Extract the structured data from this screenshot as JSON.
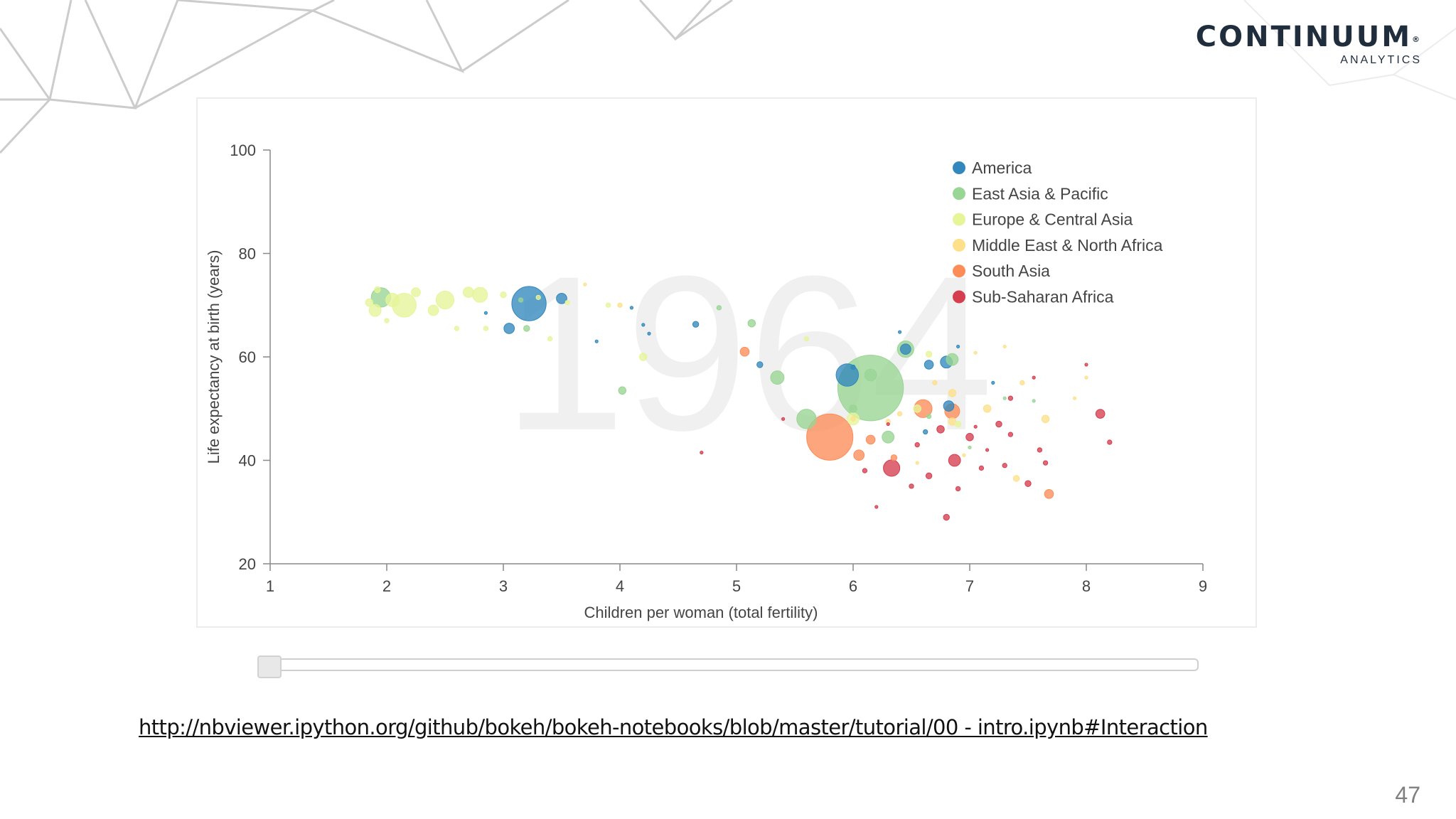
{
  "branding": {
    "name": "CONTINUUM",
    "reg_mark": "®",
    "subtitle": "ANALYTICS"
  },
  "footer": {
    "url": "http://nbviewer.ipython.org/github/bokeh/bokeh-notebooks/blob/master/tutorial/00 - intro.ipynb#Interaction",
    "page_number": "47"
  },
  "slider": {
    "value": 0
  },
  "chart_data": {
    "type": "scatter",
    "year_label": "1964",
    "xlabel": "Children per woman (total fertility)",
    "ylabel": "Life expectancy at birth (years)",
    "xlim": [
      1,
      9
    ],
    "ylim": [
      20,
      100
    ],
    "x_ticks": [
      1,
      2,
      3,
      4,
      5,
      6,
      7,
      8,
      9
    ],
    "y_ticks": [
      20,
      40,
      60,
      80,
      100
    ],
    "legend_position": "top-right",
    "series": [
      {
        "name": "America",
        "color": "#3288bd",
        "points": [
          [
            3.22,
            70.3,
            23
          ],
          [
            3.5,
            71.3,
            7
          ],
          [
            3.05,
            65.5,
            7
          ],
          [
            4.65,
            66.3,
            4
          ],
          [
            5.2,
            58.5,
            4
          ],
          [
            5.95,
            56.5,
            15
          ],
          [
            6.65,
            58.5,
            6
          ],
          [
            6.8,
            59.0,
            8
          ],
          [
            6.45,
            61.5,
            7
          ],
          [
            6.82,
            50.5,
            7
          ],
          [
            6.0,
            58.0,
            3
          ],
          [
            3.8,
            63.0,
            2
          ],
          [
            4.1,
            69.5,
            2
          ],
          [
            4.25,
            64.5,
            2
          ],
          [
            7.2,
            55.0,
            2
          ],
          [
            6.62,
            45.5,
            3
          ],
          [
            6.4,
            64.8,
            2
          ],
          [
            6.9,
            62.0,
            2
          ],
          [
            2.85,
            68.5,
            2
          ],
          [
            4.2,
            66.2,
            2
          ]
        ]
      },
      {
        "name": "East Asia & Pacific",
        "color": "#99d594",
        "points": [
          [
            6.15,
            54.0,
            44
          ],
          [
            5.6,
            48.0,
            13
          ],
          [
            6.45,
            61.5,
            11
          ],
          [
            5.35,
            56.0,
            9
          ],
          [
            6.15,
            56.5,
            8
          ],
          [
            6.85,
            59.5,
            8
          ],
          [
            1.95,
            71.5,
            13
          ],
          [
            5.13,
            66.5,
            5
          ],
          [
            4.02,
            53.5,
            5
          ],
          [
            6.3,
            44.5,
            8
          ],
          [
            4.85,
            69.5,
            3
          ],
          [
            3.15,
            71.0,
            3
          ],
          [
            3.2,
            65.5,
            4
          ],
          [
            7.3,
            52.0,
            2
          ],
          [
            6.65,
            48.5,
            3
          ],
          [
            6.0,
            50.0,
            5
          ],
          [
            7.0,
            42.5,
            2
          ],
          [
            7.55,
            51.5,
            2
          ]
        ]
      },
      {
        "name": "Europe & Central Asia",
        "color": "#e6f598",
        "points": [
          [
            2.15,
            70.0,
            16
          ],
          [
            2.5,
            71.0,
            12
          ],
          [
            2.8,
            72.0,
            10
          ],
          [
            1.9,
            69.0,
            8
          ],
          [
            2.05,
            71.0,
            9
          ],
          [
            2.4,
            69.0,
            7
          ],
          [
            2.7,
            72.5,
            7
          ],
          [
            2.25,
            72.5,
            6
          ],
          [
            1.85,
            70.5,
            5
          ],
          [
            3.0,
            72.0,
            4
          ],
          [
            2.6,
            65.5,
            3
          ],
          [
            2.85,
            65.5,
            3
          ],
          [
            3.4,
            63.5,
            3
          ],
          [
            3.55,
            70.5,
            3
          ],
          [
            3.9,
            70.0,
            3
          ],
          [
            4.2,
            60.0,
            5
          ],
          [
            5.6,
            63.5,
            3
          ],
          [
            6.0,
            48.0,
            8
          ],
          [
            6.65,
            60.5,
            4
          ],
          [
            6.55,
            50.0,
            5
          ],
          [
            2.0,
            67.0,
            3
          ],
          [
            3.3,
            71.5,
            3
          ],
          [
            1.92,
            73.0,
            4
          ],
          [
            6.9,
            47.0,
            4
          ]
        ]
      },
      {
        "name": "Middle East & North Africa",
        "color": "#fee08b",
        "points": [
          [
            7.65,
            48.0,
            5
          ],
          [
            7.15,
            50.0,
            5
          ],
          [
            6.85,
            47.5,
            5
          ],
          [
            6.4,
            49.0,
            3
          ],
          [
            7.45,
            55.0,
            3
          ],
          [
            7.05,
            60.8,
            2
          ],
          [
            3.7,
            74.0,
            2
          ],
          [
            4.0,
            70.0,
            3
          ],
          [
            6.85,
            53.0,
            5
          ],
          [
            7.4,
            36.5,
            4
          ],
          [
            6.7,
            55.0,
            3
          ],
          [
            8.0,
            56.0,
            2
          ],
          [
            6.0,
            48.0,
            3
          ],
          [
            6.55,
            39.5,
            2
          ],
          [
            6.95,
            41.0,
            2
          ],
          [
            7.3,
            62.0,
            2
          ],
          [
            7.9,
            52.0,
            2
          ],
          [
            6.3,
            47.5,
            3
          ]
        ]
      },
      {
        "name": "South Asia",
        "color": "#fc8d59",
        "points": [
          [
            5.8,
            44.5,
            31
          ],
          [
            6.6,
            50.0,
            12
          ],
          [
            6.85,
            49.5,
            10
          ],
          [
            7.68,
            33.5,
            6
          ],
          [
            5.07,
            61.0,
            6
          ],
          [
            6.05,
            41.0,
            7
          ],
          [
            6.15,
            44.0,
            6
          ],
          [
            6.35,
            40.5,
            4
          ]
        ]
      },
      {
        "name": "Sub-Saharan Africa",
        "color": "#d53e4f",
        "points": [
          [
            6.33,
            38.5,
            11
          ],
          [
            6.87,
            40.0,
            8
          ],
          [
            8.12,
            49.0,
            6
          ],
          [
            6.75,
            46.0,
            5
          ],
          [
            7.0,
            44.5,
            5
          ],
          [
            6.5,
            35.0,
            3
          ],
          [
            6.9,
            34.5,
            3
          ],
          [
            7.3,
            39.0,
            3
          ],
          [
            7.5,
            35.5,
            4
          ],
          [
            6.8,
            29.0,
            4
          ],
          [
            7.1,
            38.5,
            3
          ],
          [
            6.1,
            38.0,
            3
          ],
          [
            6.55,
            43.0,
            3
          ],
          [
            7.35,
            45.0,
            3
          ],
          [
            7.65,
            39.5,
            3
          ],
          [
            7.25,
            47.0,
            4
          ],
          [
            8.2,
            43.5,
            3
          ],
          [
            7.35,
            52.0,
            3
          ],
          [
            7.6,
            42.0,
            3
          ],
          [
            6.2,
            31.0,
            2
          ],
          [
            5.4,
            48.0,
            2
          ],
          [
            6.65,
            37.0,
            4
          ],
          [
            7.15,
            42.0,
            2
          ],
          [
            7.05,
            46.5,
            2
          ],
          [
            4.7,
            41.5,
            2
          ],
          [
            6.3,
            47.0,
            2
          ],
          [
            7.55,
            56.0,
            2
          ],
          [
            8.0,
            58.5,
            2
          ]
        ]
      }
    ]
  }
}
